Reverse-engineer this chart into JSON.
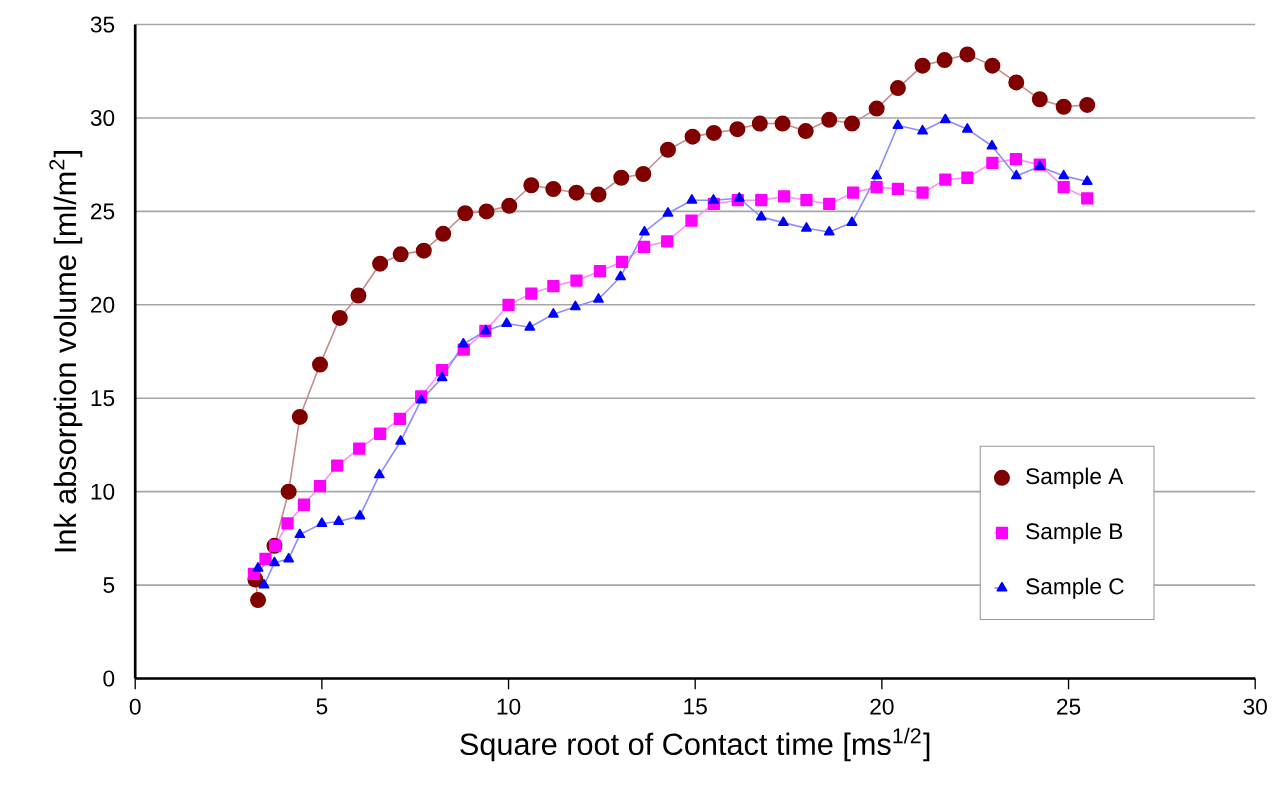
{
  "chart_data": {
    "type": "line",
    "xlabel": "Square root of Contact time  [ms$^{1/2}$]",
    "ylabel": "Ink absorption volume  [ml/m$^{2}$]",
    "xlim": [
      0,
      30
    ],
    "xticks": [
      0,
      5,
      10,
      15,
      20,
      25,
      30
    ],
    "ylim": [
      0,
      35
    ],
    "yticks": [
      0,
      5,
      10,
      15,
      20,
      25,
      30,
      35
    ],
    "grid": "y",
    "legend": "bottom right",
    "line_style": "solid",
    "series": [
      {
        "name": "Sample A",
        "color": "#800000",
        "marker": "circle",
        "x": [
          3.29,
          3.22,
          3.73,
          4.11,
          4.41,
          4.95,
          5.48,
          5.98,
          6.56,
          7.11,
          7.73,
          8.25,
          8.84,
          9.41,
          10.02,
          10.61,
          11.2,
          11.82,
          12.41,
          13.02,
          13.61,
          14.27,
          14.93,
          15.5,
          16.13,
          16.73,
          17.34,
          17.96,
          18.59,
          19.2,
          19.86,
          20.43,
          21.09,
          21.68,
          22.29,
          22.96,
          23.6,
          24.23,
          24.87,
          25.5
        ],
        "values": [
          4.2,
          5.3,
          7.1,
          10.0,
          14.0,
          16.8,
          19.3,
          20.5,
          22.2,
          22.7,
          22.9,
          23.8,
          24.9,
          25.0,
          25.3,
          26.4,
          26.2,
          26.0,
          25.9,
          26.8,
          27.0,
          28.3,
          29.0,
          29.2,
          29.4,
          29.7,
          29.7,
          29.3,
          29.9,
          29.7,
          30.5,
          31.6,
          32.8,
          33.1,
          33.4,
          32.8,
          31.9,
          31.0,
          30.6,
          30.7
        ]
      },
      {
        "name": "Sample B",
        "color": "#ff00ff",
        "marker": "square",
        "x": [
          3.18,
          3.49,
          3.75,
          4.08,
          4.52,
          4.95,
          5.41,
          6.0,
          6.56,
          7.09,
          7.66,
          8.22,
          8.8,
          9.38,
          10.0,
          10.61,
          11.2,
          11.82,
          12.45,
          13.04,
          13.63,
          14.25,
          14.9,
          15.5,
          16.14,
          16.77,
          17.38,
          17.98,
          18.59,
          19.23,
          19.86,
          20.43,
          21.09,
          21.7,
          22.29,
          22.96,
          23.59,
          24.23,
          24.87,
          25.5
        ],
        "values": [
          5.6,
          6.4,
          7.1,
          8.3,
          9.3,
          10.3,
          11.4,
          12.3,
          13.1,
          13.9,
          15.1,
          16.5,
          17.6,
          18.6,
          20.0,
          20.6,
          21.0,
          21.3,
          21.8,
          22.3,
          23.1,
          23.4,
          24.5,
          25.4,
          25.6,
          25.6,
          25.8,
          25.6,
          25.4,
          26.0,
          26.3,
          26.2,
          26.0,
          26.7,
          26.8,
          27.6,
          27.8,
          27.5,
          26.3,
          25.7
        ]
      },
      {
        "name": "Sample C",
        "color": "#0000ff",
        "marker": "triangle",
        "x": [
          3.29,
          3.45,
          3.73,
          4.11,
          4.41,
          5.0,
          5.45,
          6.02,
          6.54,
          7.11,
          7.66,
          8.22,
          8.79,
          9.39,
          9.95,
          10.57,
          11.2,
          11.79,
          12.41,
          13.0,
          13.64,
          14.27,
          14.91,
          15.49,
          16.18,
          16.77,
          17.36,
          17.98,
          18.59,
          19.2,
          19.86,
          20.43,
          21.09,
          21.7,
          22.29,
          22.95,
          23.6,
          24.23,
          24.87,
          25.5
        ],
        "values": [
          5.9,
          5.0,
          6.2,
          6.4,
          7.7,
          8.3,
          8.4,
          8.7,
          10.9,
          12.7,
          14.9,
          16.1,
          17.9,
          18.6,
          19.0,
          18.8,
          19.5,
          19.9,
          20.3,
          21.5,
          23.9,
          24.9,
          25.6,
          25.6,
          25.7,
          24.7,
          24.4,
          24.1,
          23.9,
          24.4,
          26.9,
          29.6,
          29.3,
          29.9,
          29.4,
          28.5,
          26.9,
          27.4,
          26.9,
          26.6
        ]
      }
    ]
  }
}
